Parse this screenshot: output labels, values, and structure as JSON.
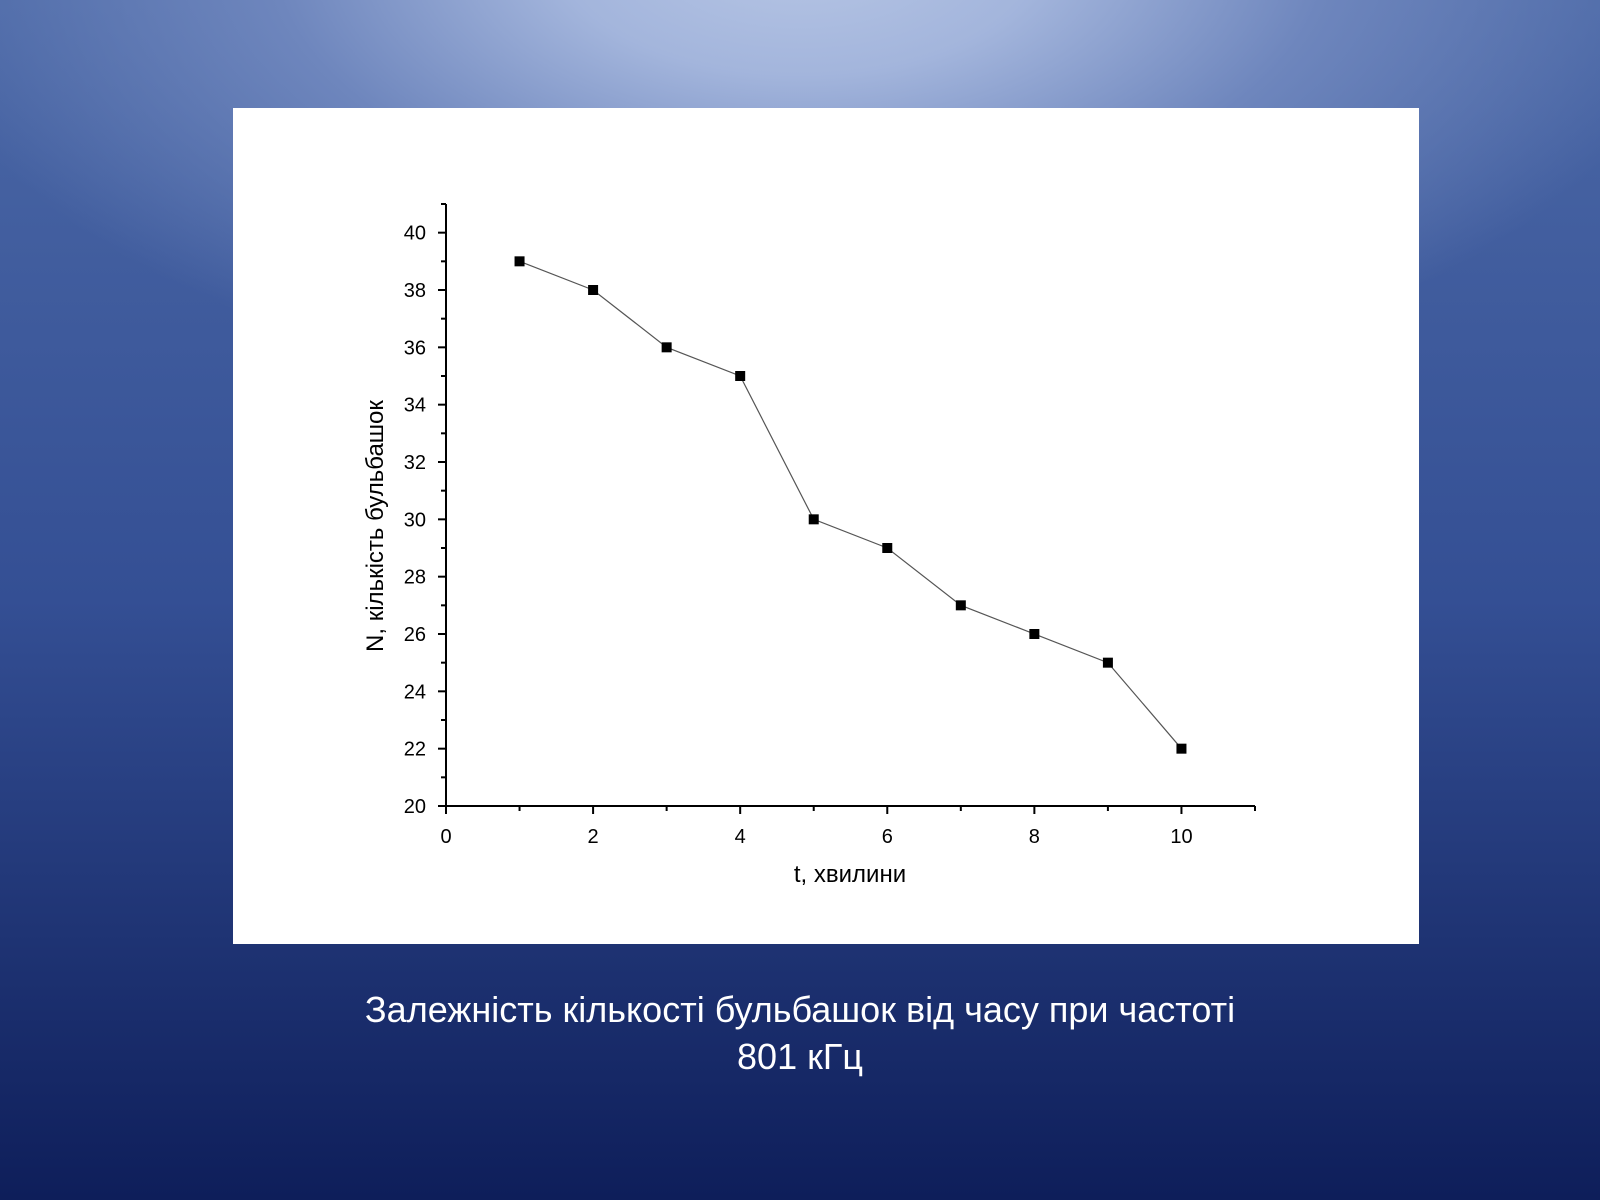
{
  "slide": {
    "caption_line1": "Залежність кількості бульбашок від часу при частоті",
    "caption_line2": "801 кГц"
  },
  "chart_data": {
    "type": "line",
    "xlabel": "t, хвилини",
    "ylabel": "N, кількість бульбашок",
    "xlim": [
      0,
      11
    ],
    "ylim": [
      20,
      41
    ],
    "x_ticks": [
      0,
      2,
      4,
      6,
      8,
      10
    ],
    "y_ticks": [
      20,
      22,
      24,
      26,
      28,
      30,
      32,
      34,
      36,
      38,
      40
    ],
    "grid": false,
    "marker": "square",
    "series": [
      {
        "x": [
          1,
          2,
          3,
          4,
          5,
          6,
          7,
          8,
          9,
          10
        ],
        "y": [
          39,
          38,
          36,
          35,
          30,
          29,
          27,
          26,
          25,
          22
        ],
        "color": "#000000",
        "line_color": "#555555"
      }
    ]
  },
  "colors": {
    "panel": "#ffffff",
    "caption_text": "#ffffff",
    "background_top": "#b7c6e5",
    "background_bottom": "#0e1e5a"
  }
}
